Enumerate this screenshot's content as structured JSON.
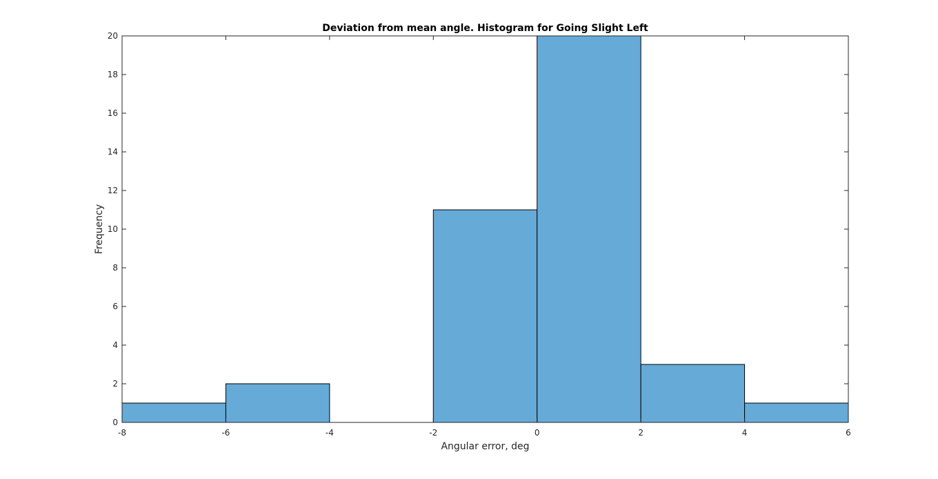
{
  "chart_data": {
    "type": "bar",
    "subtype": "histogram",
    "title": "Deviation from mean angle. Histogram for Going Slight Left",
    "xlabel": "Angular error, deg",
    "ylabel": "Frequency",
    "bin_edges": [
      -8,
      -6,
      -4,
      -2,
      0,
      2,
      4,
      6
    ],
    "values": [
      1,
      2,
      0,
      11,
      20,
      3,
      1
    ],
    "xlim": [
      -8,
      6
    ],
    "ylim": [
      0,
      20
    ],
    "xticks": [
      -8,
      -6,
      -4,
      -2,
      0,
      2,
      4,
      6
    ],
    "yticks": [
      0,
      2,
      4,
      6,
      8,
      10,
      12,
      14,
      16,
      18,
      20
    ],
    "xtick_labels": [
      "-8",
      "-6",
      "-4",
      "-2",
      "0",
      "2",
      "4",
      "6"
    ],
    "ytick_labels": [
      "0",
      "2",
      "4",
      "6",
      "8",
      "10",
      "12",
      "14",
      "16",
      "18",
      "20"
    ],
    "grid": false,
    "legend": "none",
    "bar_color": "#66aad7",
    "edge_color": "#000000"
  }
}
